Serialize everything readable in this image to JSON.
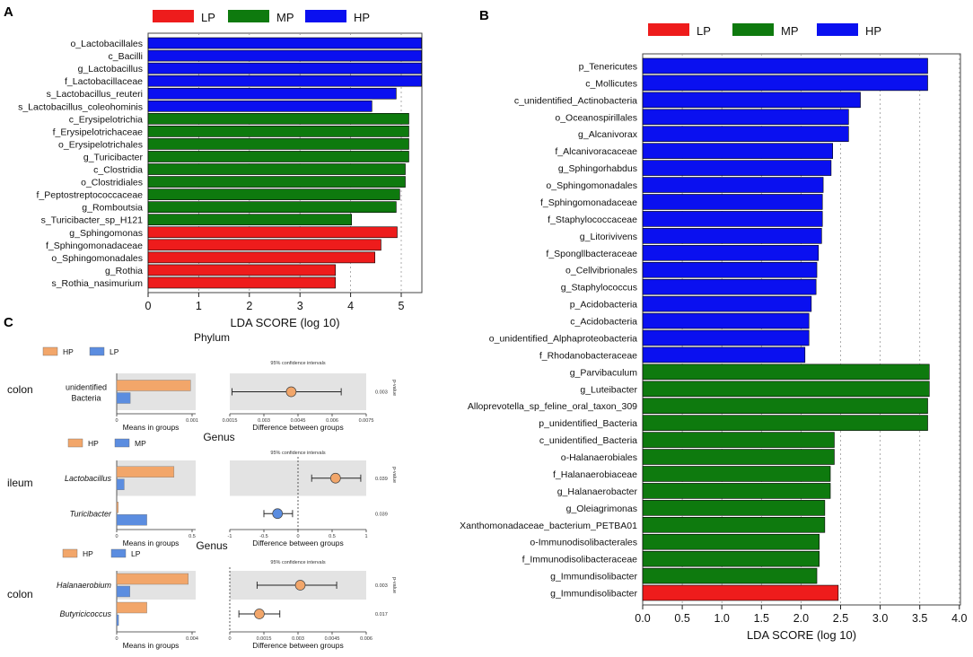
{
  "colors": {
    "LP": "#ee1c1c",
    "MP": "#0e7a0e",
    "HP": "#0a10f0",
    "c_HP": "#f2a66a",
    "c_LP": "#5b8de0",
    "c_shade": "#e3e3e3"
  },
  "chart_data": [
    {
      "panel": "A",
      "type": "bar",
      "orientation": "horizontal",
      "legend": [
        "LP",
        "MP",
        "HP"
      ],
      "xlabel": "LDA SCORE (log 10)",
      "xlim": [
        0,
        5.3
      ],
      "xticks": [
        "0",
        "1",
        "2",
        "3",
        "4",
        "5"
      ],
      "grid": true,
      "bars": [
        {
          "label": "o_Lactobacillales",
          "group": "HP",
          "value": 5.4
        },
        {
          "label": "c_Bacilli",
          "group": "HP",
          "value": 5.4
        },
        {
          "label": "g_Lactobacillus",
          "group": "HP",
          "value": 5.4
        },
        {
          "label": "f_Lactobacillaceae",
          "group": "HP",
          "value": 5.4
        },
        {
          "label": "s_Lactobacillus_reuteri",
          "group": "HP",
          "value": 4.9
        },
        {
          "label": "s_Lactobacillus_coleohominis",
          "group": "HP",
          "value": 4.42
        },
        {
          "label": "c_Erysipelotrichia",
          "group": "MP",
          "value": 5.15
        },
        {
          "label": "f_Erysipelotrichaceae",
          "group": "MP",
          "value": 5.15
        },
        {
          "label": "o_Erysipelotrichales",
          "group": "MP",
          "value": 5.15
        },
        {
          "label": "g_Turicibacter",
          "group": "MP",
          "value": 5.15
        },
        {
          "label": "c_Clostridia",
          "group": "MP",
          "value": 5.08
        },
        {
          "label": "o_Clostridiales",
          "group": "MP",
          "value": 5.08
        },
        {
          "label": "f_Peptostreptococcaceae",
          "group": "MP",
          "value": 4.97
        },
        {
          "label": "g_Romboutsia",
          "group": "MP",
          "value": 4.9
        },
        {
          "label": "s_Turicibacter_sp_H121",
          "group": "MP",
          "value": 4.02
        },
        {
          "label": "g_Sphingomonas",
          "group": "LP",
          "value": 4.92
        },
        {
          "label": "f_Sphingomonadaceae",
          "group": "LP",
          "value": 4.6
        },
        {
          "label": "o_Sphingomonadales",
          "group": "LP",
          "value": 4.48
        },
        {
          "label": "g_Rothia",
          "group": "LP",
          "value": 3.7
        },
        {
          "label": "s_Rothia_nasimurium",
          "group": "LP",
          "value": 3.7
        }
      ]
    },
    {
      "panel": "B",
      "type": "bar",
      "orientation": "horizontal",
      "legend": [
        "LP",
        "MP",
        "HP"
      ],
      "xlabel": "LDA SCORE (log 10)",
      "xlim": [
        0,
        4.0
      ],
      "xticks": [
        "0.0",
        "0.5",
        "1.0",
        "1.5",
        "2.0",
        "2.5",
        "3.0",
        "3.5",
        "4.0"
      ],
      "grid": true,
      "bars": [
        {
          "label": "p_Tenericutes",
          "group": "HP",
          "value": 3.6
        },
        {
          "label": "c_Mollicutes",
          "group": "HP",
          "value": 3.6
        },
        {
          "label": "c_unidentified_Actinobacteria",
          "group": "HP",
          "value": 2.75
        },
        {
          "label": "o_Oceanospirillales",
          "group": "HP",
          "value": 2.6
        },
        {
          "label": "g_Alcanivorax",
          "group": "HP",
          "value": 2.6
        },
        {
          "label": "f_Alcanivoracaceae",
          "group": "HP",
          "value": 2.4
        },
        {
          "label": "g_Sphingorhabdus",
          "group": "HP",
          "value": 2.38
        },
        {
          "label": "o_Sphingomonadales",
          "group": "HP",
          "value": 2.28
        },
        {
          "label": "f_Sphingomonadaceae",
          "group": "HP",
          "value": 2.27
        },
        {
          "label": "f_Staphylococcaceae",
          "group": "HP",
          "value": 2.27
        },
        {
          "label": "g_Litorivivens",
          "group": "HP",
          "value": 2.26
        },
        {
          "label": "f_Spongllbacteraceae",
          "group": "HP",
          "value": 2.22
        },
        {
          "label": "o_Cellvibrionales",
          "group": "HP",
          "value": 2.2
        },
        {
          "label": "g_Staphylococcus",
          "group": "HP",
          "value": 2.19
        },
        {
          "label": "p_Acidobacteria",
          "group": "HP",
          "value": 2.13
        },
        {
          "label": "c_Acidobacteria",
          "group": "HP",
          "value": 2.1
        },
        {
          "label": "o_unidentified_Alphaproteobacteria",
          "group": "HP",
          "value": 2.1
        },
        {
          "label": "f_Rhodanobacteraceae",
          "group": "HP",
          "value": 2.05
        },
        {
          "label": "g_Parvibaculum",
          "group": "MP",
          "value": 3.62
        },
        {
          "label": "g_Luteibacter",
          "group": "MP",
          "value": 3.62
        },
        {
          "label": "Alloprevotella_sp_feline_oral_taxon_309",
          "group": "MP",
          "value": 3.6
        },
        {
          "label": "p_unidentified_Bacteria",
          "group": "MP",
          "value": 3.6
        },
        {
          "label": "c_unidentified_Bacteria",
          "group": "MP",
          "value": 2.42
        },
        {
          "label": "o-Halanaerobiales",
          "group": "MP",
          "value": 2.42
        },
        {
          "label": "f_Halanaerobiaceae",
          "group": "MP",
          "value": 2.37
        },
        {
          "label": "g_Halanaerobacter",
          "group": "MP",
          "value": 2.37
        },
        {
          "label": "g_Oleiagrimonas",
          "group": "MP",
          "value": 2.3
        },
        {
          "label": "Xanthomonadaceae_bacterium_PETBA01",
          "group": "MP",
          "value": 2.3
        },
        {
          "label": "o-Immunodisolibacterales",
          "group": "MP",
          "value": 2.23
        },
        {
          "label": "f_Immunodisolibacteraceae",
          "group": "MP",
          "value": 2.23
        },
        {
          "label": "g_Immundisolibacter",
          "group": "MP",
          "value": 2.2
        },
        {
          "label": "g_Immundisolibacter",
          "group": "LP",
          "value": 2.47
        }
      ]
    },
    {
      "panel": "C",
      "type": "extended_error_bar",
      "rows": [
        {
          "title": "Phylum",
          "site": "colon",
          "legend": [
            "HP",
            "LP"
          ],
          "legend_colors": [
            "c_HP",
            "c_LP"
          ],
          "ci_title": "95% confidence intervals",
          "pvalue_label": "p-value",
          "mean_xlabel": "Means in groups",
          "diff_xlabel": "Difference between groups",
          "mean_ticks": [
            "0",
            "0.001"
          ],
          "mean_max": 0.001,
          "diff_ticks": [
            "0.0015",
            "0.003",
            "0.0045",
            "0.006",
            "0.0075"
          ],
          "diff_range": [
            0.0015,
            0.0075
          ],
          "zero_line": null,
          "taxa": [
            {
              "name": "unidentified Bacteria",
              "italic": false,
              "means": [
                0.00098,
                0.00018
              ],
              "diff": 0.0042,
              "ci": [
                0.0016,
                0.0064
              ],
              "pvalue": "0.003"
            }
          ]
        },
        {
          "title": "Genus",
          "site": "ileum",
          "legend": [
            "HP",
            "MP"
          ],
          "legend_colors": [
            "c_HP",
            "c_LP"
          ],
          "ci_title": "95% confidence intervals",
          "pvalue_label": "p-value",
          "mean_xlabel": "Means in groups",
          "diff_xlabel": "Difference between groups",
          "mean_ticks": [
            "0",
            "0.5"
          ],
          "mean_max": 0.5,
          "diff_ticks": [
            "-1",
            "-0.5",
            "0",
            "0.5",
            "1"
          ],
          "diff_range": [
            -1,
            1
          ],
          "zero_line": 0,
          "taxa": [
            {
              "name": "Lactobacillus",
              "italic": true,
              "means": [
                0.38,
                0.05
              ],
              "diff": 0.55,
              "ci": [
                0.2,
                0.92
              ],
              "pvalue": "0.039"
            },
            {
              "name": "Turicibacter",
              "italic": true,
              "means": [
                0.01,
                0.2
              ],
              "diff": -0.3,
              "ci": [
                -0.5,
                -0.08
              ],
              "pvalue": "0.039"
            }
          ]
        },
        {
          "title": "Genus",
          "site": "colon",
          "legend": [
            "HP",
            "LP"
          ],
          "legend_colors": [
            "c_HP",
            "c_LP"
          ],
          "ci_title": "95% confidence intervals",
          "pvalue_label": "p-value",
          "mean_xlabel": "Means in groups",
          "diff_xlabel": "Difference between groups",
          "mean_ticks": [
            "0",
            "0.004"
          ],
          "mean_max": 0.004,
          "diff_ticks": [
            "0",
            "0.0015",
            "0.003",
            "0.0045",
            "0.006"
          ],
          "diff_range": [
            0,
            0.006
          ],
          "zero_line": 0,
          "taxa": [
            {
              "name": "Halanaerobium",
              "italic": true,
              "means": [
                0.0038,
                0.0007
              ],
              "diff": 0.0031,
              "ci": [
                0.0012,
                0.0047
              ],
              "pvalue": "0.003"
            },
            {
              "name": "Butyricicoccus",
              "italic": true,
              "means": [
                0.0016,
                0.0001
              ],
              "diff": 0.0013,
              "ci": [
                0.0004,
                0.0022
              ],
              "pvalue": "0.017"
            }
          ]
        }
      ]
    }
  ]
}
